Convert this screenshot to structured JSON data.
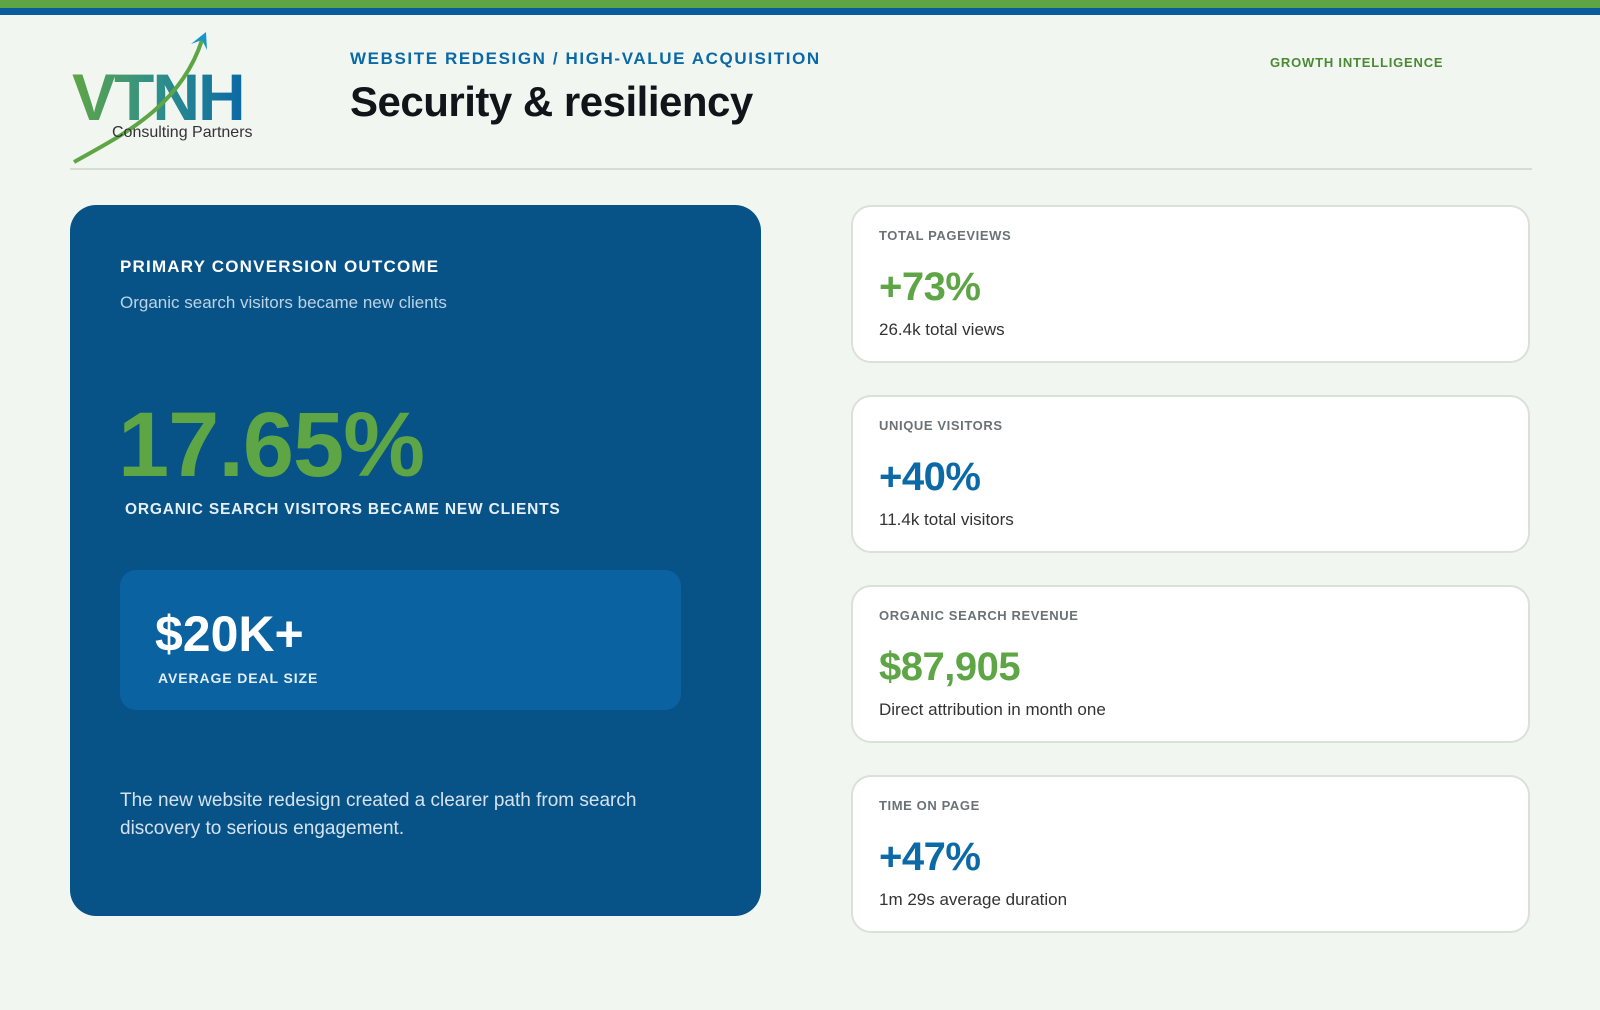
{
  "brand": {
    "logo_text": "VTNH",
    "logo_caption": "Consulting Partners",
    "colors": {
      "green": "#5ea546",
      "blue": "#0a69a6",
      "navy": "#075388"
    }
  },
  "header": {
    "kicker": "WEBSITE REDESIGN / HIGH-VALUE ACQUISITION",
    "title": "Security & resiliency",
    "section_tag": "GROWTH INTELLIGENCE"
  },
  "hero": {
    "kicker": "PRIMARY CONVERSION OUTCOME",
    "subtitle": "Organic search visitors became new clients",
    "value": "17.65%",
    "value_label": "ORGANIC SEARCH VISITORS BECAME NEW CLIENTS",
    "deal_value": "$20K+",
    "deal_label": "AVERAGE DEAL SIZE",
    "note": "The new website redesign created a clearer path from search discovery to serious engagement."
  },
  "metrics": [
    {
      "label": "TOTAL PAGEVIEWS",
      "value": "+73%",
      "detail": "26.4k total views",
      "accent": "green"
    },
    {
      "label": "UNIQUE VISITORS",
      "value": "+40%",
      "detail": "11.4k total visitors",
      "accent": "blue"
    },
    {
      "label": "ORGANIC SEARCH REVENUE",
      "value": "$87,905",
      "detail": "Direct attribution in month one",
      "accent": "green"
    },
    {
      "label": "TIME ON PAGE",
      "value": "+47%",
      "detail": "1m 29s average duration",
      "accent": "blue"
    }
  ]
}
